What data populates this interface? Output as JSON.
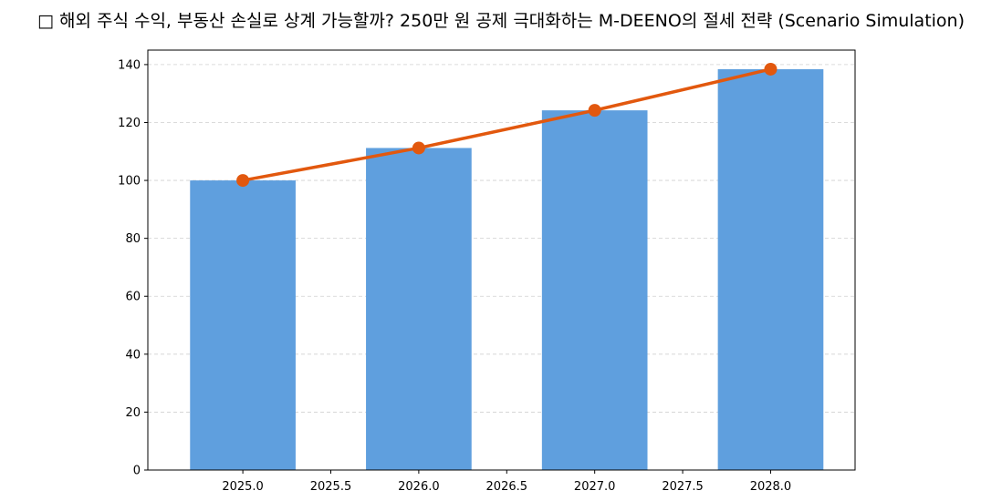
{
  "chart_data": {
    "type": "bar",
    "title": "□ 해외 주식 수익, 부동산 손실로 상계 가능할까? 250만 원 공제 극대화하는 M-DEENO의 절세 전략 (Scenario Simulation)",
    "xlabel": "",
    "ylabel": "",
    "x": [
      2025,
      2026,
      2027,
      2028
    ],
    "series": [
      {
        "kind": "bar",
        "values": [
          100,
          111.2,
          124.2,
          138.4
        ],
        "color": "#5f9fde"
      },
      {
        "kind": "line",
        "values": [
          100,
          111.2,
          124.2,
          138.4
        ],
        "color": "#e2580e"
      }
    ],
    "xlim": [
      2024.46,
      2028.48
    ],
    "ylim": [
      0,
      145
    ],
    "x_ticks": [
      "2025.0",
      "2025.5",
      "2026.0",
      "2026.5",
      "2027.0",
      "2027.5",
      "2028.0"
    ],
    "y_ticks": [
      "0",
      "20",
      "40",
      "60",
      "80",
      "100",
      "120",
      "140"
    ],
    "grid": "horizontal-dashed",
    "legend": "none"
  }
}
